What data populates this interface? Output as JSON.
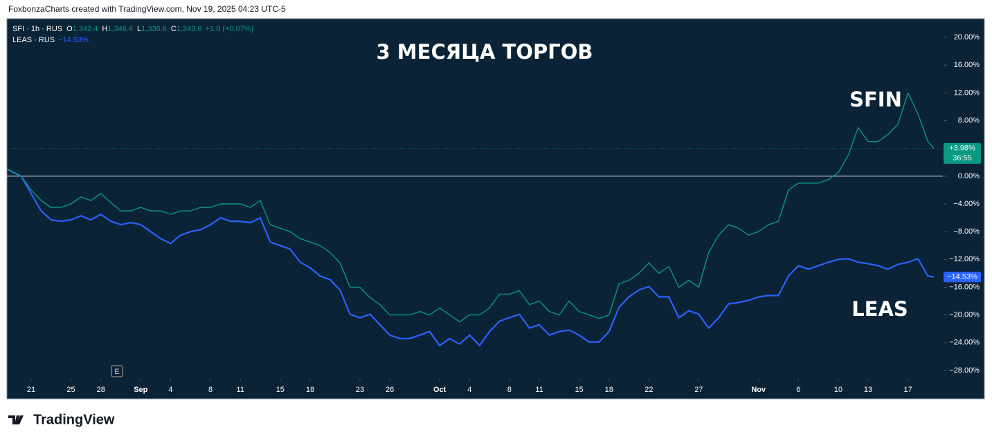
{
  "header": "FoxbonzaCharts created with TradingView.com, Nov 19, 2025 04:23 UTC-5",
  "footer": "TradingView",
  "chart_data": {
    "type": "line",
    "title": "3 МЕСЯЦА ТОРГОВ",
    "annotations": [
      "SFIN",
      "LEAS"
    ],
    "earnings_marker": "E",
    "ohlc": [
      [
        "O",
        "1,342.4"
      ],
      [
        "H",
        "1,346.4"
      ],
      [
        "L",
        "1,336.6"
      ],
      [
        "C",
        "1,343.6"
      ]
    ],
    "change": "+1.0 (+0.07%)",
    "zero_line": true,
    "last_value_line": true,
    "x": [
      -2.4,
      -1,
      0,
      1,
      2,
      3,
      4,
      5,
      6,
      7,
      8,
      9,
      10,
      11,
      12,
      13,
      14,
      15,
      16,
      17,
      18,
      19,
      20,
      21,
      22,
      23,
      24,
      25,
      26,
      27,
      28,
      29,
      30,
      31,
      32,
      33,
      34,
      35,
      36,
      37,
      38,
      39,
      40,
      41,
      42,
      43,
      44,
      45,
      46,
      47,
      48,
      49,
      50,
      51,
      52,
      53,
      54,
      55,
      56,
      57,
      58,
      59,
      60,
      61,
      62,
      63,
      64,
      65,
      66,
      67,
      68,
      69,
      70,
      71,
      72,
      73,
      74,
      75,
      76,
      77,
      78,
      79,
      80,
      81,
      82,
      83,
      84,
      85,
      86,
      87,
      88,
      89,
      90,
      90.6
    ],
    "xlim": [
      -2.43,
      91.5
    ],
    "xticks": [
      {
        "value": 0,
        "label": "21"
      },
      {
        "value": 4,
        "label": "25"
      },
      {
        "value": 7,
        "label": "28"
      },
      {
        "value": 11,
        "label": "Sep"
      },
      {
        "value": 14,
        "label": "4"
      },
      {
        "value": 18,
        "label": "8"
      },
      {
        "value": 21,
        "label": "11"
      },
      {
        "value": 25,
        "label": "15"
      },
      {
        "value": 28,
        "label": "18"
      },
      {
        "value": 33,
        "label": "23"
      },
      {
        "value": 36,
        "label": "26"
      },
      {
        "value": 41,
        "label": "Oct"
      },
      {
        "value": 44,
        "label": "4"
      },
      {
        "value": 48,
        "label": "8"
      },
      {
        "value": 51,
        "label": "11"
      },
      {
        "value": 55,
        "label": "15"
      },
      {
        "value": 58,
        "label": "18"
      },
      {
        "value": 62,
        "label": "22"
      },
      {
        "value": 67,
        "label": "27"
      },
      {
        "value": 73,
        "label": "Nov"
      },
      {
        "value": 77,
        "label": "6"
      },
      {
        "value": 81,
        "label": "10"
      },
      {
        "value": 84,
        "label": "13"
      },
      {
        "value": 88,
        "label": "17"
      }
    ],
    "ylim": [
      -29.2,
      22.7
    ],
    "yticks": [
      {
        "value": 20,
        "label": "20.00%"
      },
      {
        "value": 16,
        "label": "16.00%"
      },
      {
        "value": 12,
        "label": "12.00%"
      },
      {
        "value": 8,
        "label": "8.00%"
      },
      {
        "value": 4,
        "label": "4.00%"
      },
      {
        "value": 0,
        "label": "0.00%"
      },
      {
        "value": -4,
        "label": "−4.00%"
      },
      {
        "value": -8,
        "label": "−8.00%"
      },
      {
        "value": -12,
        "label": "−12.00%"
      },
      {
        "value": -16,
        "label": "−16.00%"
      },
      {
        "value": -20,
        "label": "−20.00%"
      },
      {
        "value": -24,
        "label": "−24.00%"
      },
      {
        "value": -28,
        "label": "−28.00%"
      }
    ],
    "series": [
      {
        "name": "SFI · 1h · RUS",
        "color": "#089981",
        "last_label": "+3.98%",
        "countdown": "36:55",
        "values": [
          1.0,
          0,
          -2,
          -3.5,
          -4.5,
          -4.5,
          -4,
          -3,
          -3.5,
          -2.5,
          -3.8,
          -5,
          -5,
          -4.5,
          -5,
          -5,
          -5.5,
          -5,
          -5,
          -4.5,
          -4.5,
          -4,
          -4,
          -4,
          -4.5,
          -3.5,
          -7,
          -7.5,
          -8,
          -9,
          -9.5,
          -10,
          -11,
          -12.5,
          -16,
          -16,
          -17.5,
          -18.5,
          -20,
          -20,
          -20,
          -19.5,
          -20,
          -19,
          -20,
          -21,
          -20,
          -20,
          -19,
          -17,
          -17,
          -16.5,
          -18.5,
          -18,
          -19.5,
          -20,
          -18,
          -19.5,
          -20,
          -20.5,
          -20,
          -15.5,
          -15,
          -14,
          -12.5,
          -14,
          -13,
          -16,
          -15,
          -16,
          -11,
          -8.5,
          -7,
          -7.5,
          -8.5,
          -8,
          -7,
          -6.5,
          -2,
          -1,
          -1,
          -1,
          -0.5,
          0.5,
          3,
          7,
          5,
          5,
          6,
          7.5,
          12,
          9,
          5,
          3.98
        ]
      },
      {
        "name": "LEAS · RUS",
        "color": "#2962ff",
        "last_label": "−14.53%",
        "values": [
          1.0,
          0,
          -2.5,
          -5,
          -6.3,
          -6.5,
          -6.3,
          -5.7,
          -6.3,
          -5.5,
          -6.5,
          -7,
          -6.7,
          -7,
          -8,
          -9,
          -9.7,
          -8.5,
          -8,
          -7.7,
          -7,
          -6,
          -6.5,
          -6.5,
          -6.7,
          -6,
          -9.5,
          -10,
          -10.5,
          -12.4,
          -13.2,
          -14.4,
          -14.9,
          -16.4,
          -19.9,
          -20.4,
          -19.9,
          -21.4,
          -22.9,
          -23.4,
          -23.4,
          -22.9,
          -22.4,
          -24.4,
          -23.4,
          -24.2,
          -22.9,
          -24.4,
          -22.4,
          -20.9,
          -20.4,
          -19.9,
          -21.9,
          -21.4,
          -22.9,
          -22.4,
          -22.2,
          -22.9,
          -23.9,
          -23.9,
          -22.4,
          -18.9,
          -17.4,
          -16.4,
          -15.9,
          -17.4,
          -17.4,
          -20.4,
          -19.4,
          -19.9,
          -21.9,
          -20.4,
          -18.4,
          -18.2,
          -17.9,
          -17.4,
          -17.2,
          -17.2,
          -14.4,
          -12.9,
          -13.4,
          -12.9,
          -12.4,
          -12,
          -11.9,
          -12.4,
          -12.6,
          -12.9,
          -13.4,
          -12.7,
          -12.4,
          -11.9,
          -14.4,
          -14.53
        ]
      }
    ]
  }
}
